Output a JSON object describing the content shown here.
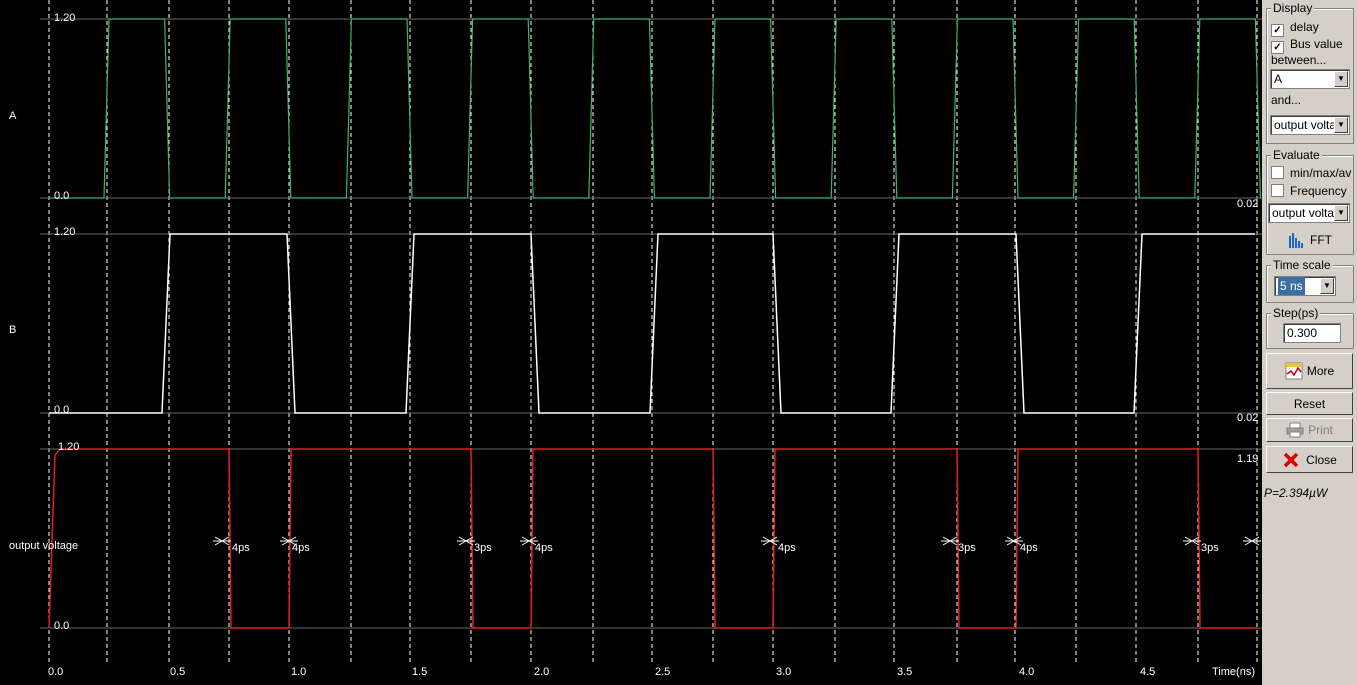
{
  "signals": [
    {
      "name": "A",
      "high": "1.20",
      "low": "0.0",
      "end_value": "0.02",
      "color": "#3cb371"
    },
    {
      "name": "B",
      "high": "1.20",
      "low": "0.0",
      "end_value": "0.02",
      "color": "#ffffff"
    },
    {
      "name": "output voltage",
      "high": "1.20",
      "low": "0.0",
      "end_value": "1.19",
      "color": "#e02020"
    }
  ],
  "time_axis": {
    "ticks": [
      "0.0",
      "0.5",
      "1.0",
      "1.5",
      "2.0",
      "2.5",
      "3.0",
      "3.5",
      "4.0",
      "4.5"
    ],
    "unit_label": "Time(ns)"
  },
  "delays": [
    "4ps",
    "4ps",
    "3ps",
    "4ps",
    "4ps",
    "3ps",
    "4ps",
    "3ps"
  ],
  "panel": {
    "display": {
      "title": "Display",
      "delay_label": "delay",
      "delay_checked": true,
      "bus_label": "Bus value",
      "bus_checked": true,
      "between_label": "between...",
      "between_value": "A",
      "and_label": "and...",
      "and_value": "output volta"
    },
    "evaluate": {
      "title": "Evaluate",
      "minmax_label": "min/max/av",
      "minmax_checked": false,
      "freq_label": "Frequency",
      "freq_checked": false,
      "target_value": "output volta",
      "fft_label": "FFT"
    },
    "timescale": {
      "title": "Time scale",
      "value": "5 ns"
    },
    "step": {
      "title": "Step(ps)",
      "value": "0.300"
    },
    "buttons": {
      "more": "More",
      "reset": "Reset",
      "print": "Print",
      "close": "Close"
    },
    "power": "P=2.394µW"
  }
}
